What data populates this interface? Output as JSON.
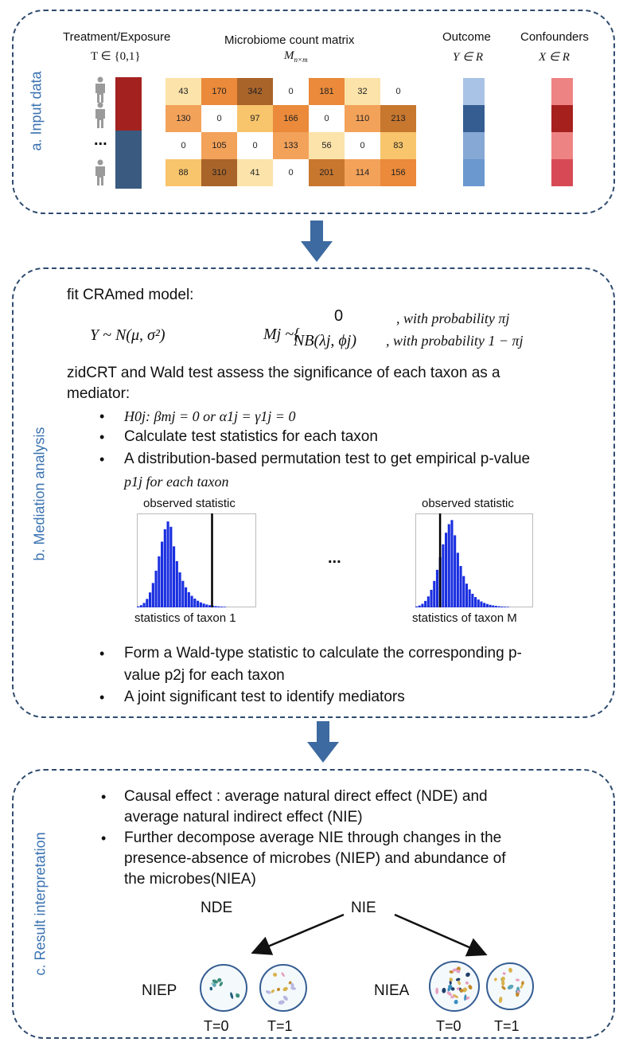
{
  "panels": {
    "a_label": "a. Input data",
    "b_label": "b. Mediation analysis",
    "c_label": "c. Result interpretation"
  },
  "input": {
    "treatment_title": "Treatment/Exposure",
    "treatment_math": "T ∈ {0,1}",
    "matrix_title": "Microbiome count matrix",
    "matrix_math": "M",
    "matrix_sub": "n×m",
    "outcome_title": "Outcome",
    "outcome_math": "Y ∈ R",
    "confounders_title": "Confounders",
    "confounders_math": "X ∈ R",
    "ellipsis": "...",
    "matrix": [
      [
        "43",
        "170",
        "342",
        "0",
        "181",
        "32",
        "0"
      ],
      [
        "130",
        "0",
        "97",
        "166",
        "0",
        "110",
        "213"
      ],
      [
        "0",
        "105",
        "0",
        "133",
        "56",
        "0",
        "83"
      ],
      [
        "88",
        "310",
        "41",
        "0",
        "201",
        "114",
        "156"
      ]
    ],
    "colors": {
      "treatment": [
        "#a32220",
        "#3a5a7f"
      ],
      "outcome": [
        "#a9c3e6",
        "#355d92",
        "#86a8d4",
        "#6b98cf"
      ],
      "confounders": [
        "#ee8383",
        "#a6201e",
        "#ee8383",
        "#d74a55"
      ]
    }
  },
  "mediation": {
    "fit_title": "fit CRAmed model:",
    "eq_y": "Y ~ N(μ, σ²)",
    "eq_mj": "Mj ~{",
    "case1_value": "0",
    "case1_cond": ", with probability πj",
    "case2_value": "NB(λj, ϕj)",
    "case2_cond": ", with probability 1 − πj",
    "zid_line1": "zidCRT and Wald test assess the significance of each taxon as a",
    "zid_line2": "mediator:",
    "bullets": {
      "h0": "H0j: βmj = 0 or α1j = γ1j = 0",
      "calc": "Calculate test statistics for each taxon",
      "perm_line1": "A distribution-based permutation test to get empirical p-value",
      "perm_line2": "p1j for each taxon",
      "wald_line1": "Form a Wald-type statistic to calculate the corresponding p-",
      "wald_line2": "value p2j for each taxon",
      "joint": "A joint significant test to identify mediators"
    },
    "hist_left": {
      "title": "observed statistic",
      "xlabel": "statistics of taxon 1"
    },
    "hist_right": {
      "title": "observed statistic",
      "xlabel": "statistics of taxon M"
    },
    "hist_ellipsis": "...",
    "hist_color": "#1a2fe0"
  },
  "result": {
    "bullet1_line1": "Causal effect : average natural direct effect (NDE) and",
    "bullet1_line2": "average natural indirect effect (NIE)",
    "bullet2_line1": "Further decompose average NIE through changes in the",
    "bullet2_line2": "presence-absence of microbes (NIEP) and abundance of",
    "bullet2_line3": "the microbes(NIEA)",
    "nde": "NDE",
    "nie": "NIE",
    "niep": "NIEP",
    "niea": "NIEA",
    "t0_a": "T=0",
    "t1_a": "T=1",
    "t0_b": "T=0",
    "t1_b": "T=1"
  },
  "arrow_color": "#3d6aa0"
}
